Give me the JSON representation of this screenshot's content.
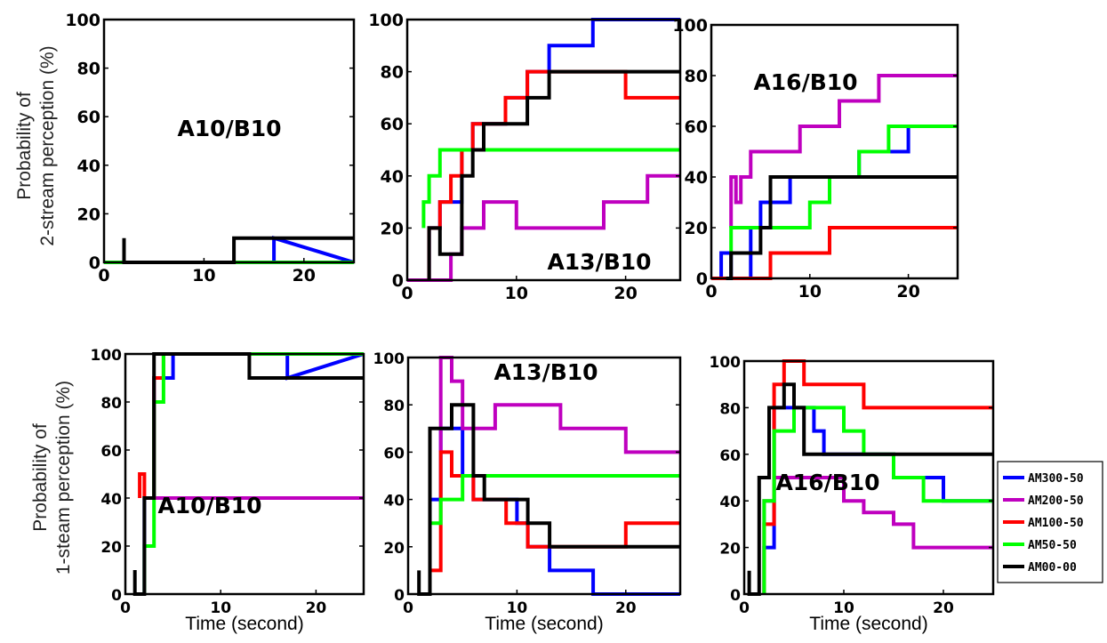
{
  "row_labels": {
    "top": [
      "Probability of",
      "2-stream perception (%)"
    ],
    "bottom": [
      "Probability of",
      "1-steam perception (%)"
    ]
  },
  "series_colors": {
    "AM300-50": "#0000ff",
    "AM200-50": "#bf00bf",
    "AM100-50": "#ff0000",
    "AM50-50": "#00ff00",
    "AM00-00": "#000000"
  },
  "chart_data": [
    {
      "type": "line",
      "annotation": "A10/B10",
      "xlabel": "",
      "ylabel": "Probability of 2-stream perception (%)",
      "xlim": [
        0,
        25
      ],
      "ylim": [
        0,
        100
      ],
      "xticks": [
        0,
        10,
        20
      ],
      "yticks": [
        0,
        20,
        40,
        60,
        80,
        100
      ],
      "grid": false,
      "legend": "none",
      "series": [
        {
          "name": "AM300-50",
          "x": [
            0,
            17,
            17,
            25
          ],
          "y": [
            0,
            0,
            10,
            0
          ]
        },
        {
          "name": "AM200-50",
          "x": [
            0,
            25
          ],
          "y": [
            0,
            0
          ]
        },
        {
          "name": "AM100-50",
          "x": [
            0,
            25
          ],
          "y": [
            0,
            0
          ]
        },
        {
          "name": "AM50-50",
          "x": [
            0,
            25
          ],
          "y": [
            0,
            0
          ]
        },
        {
          "name": "AM00-00",
          "x": [
            2,
            2,
            2,
            13,
            13,
            25
          ],
          "y": [
            0,
            10,
            0,
            0,
            10,
            10
          ]
        }
      ]
    },
    {
      "type": "line",
      "annotation": "A13/B10",
      "xlabel": "",
      "ylabel": "",
      "xlim": [
        0,
        25
      ],
      "ylim": [
        0,
        100
      ],
      "xticks": [
        0,
        10,
        20
      ],
      "yticks": [
        0,
        20,
        40,
        60,
        80,
        100
      ],
      "grid": false,
      "legend": "none",
      "series": [
        {
          "name": "AM300-50",
          "x": [
            2,
            2,
            3,
            3,
            5,
            5,
            6,
            6,
            9,
            9,
            11,
            11,
            13,
            13,
            17,
            17,
            25
          ],
          "y": [
            0,
            20,
            20,
            30,
            30,
            50,
            50,
            60,
            60,
            70,
            70,
            80,
            80,
            90,
            90,
            100,
            100
          ]
        },
        {
          "name": "AM200-50",
          "x": [
            0,
            4,
            4,
            5,
            5,
            7,
            7,
            10,
            10,
            18,
            18,
            22,
            22,
            25
          ],
          "y": [
            0,
            0,
            10,
            10,
            20,
            20,
            30,
            30,
            20,
            20,
            30,
            30,
            40,
            40
          ]
        },
        {
          "name": "AM100-50",
          "x": [
            2,
            2,
            3,
            3,
            4,
            4,
            5,
            5,
            6,
            6,
            9,
            9,
            11,
            11,
            20,
            20,
            25
          ],
          "y": [
            0,
            20,
            20,
            30,
            30,
            40,
            40,
            50,
            50,
            60,
            60,
            70,
            70,
            80,
            80,
            70,
            70
          ]
        },
        {
          "name": "AM50-50",
          "x": [
            1.5,
            1.5,
            2,
            2,
            3,
            3,
            25
          ],
          "y": [
            20,
            30,
            30,
            40,
            40,
            50,
            50
          ]
        },
        {
          "name": "AM00-00",
          "x": [
            2,
            2,
            3,
            3,
            5,
            5,
            6,
            6,
            7,
            7,
            10,
            10,
            11,
            11,
            13,
            13,
            25
          ],
          "y": [
            0,
            20,
            20,
            10,
            10,
            40,
            40,
            50,
            50,
            60,
            60,
            60,
            60,
            70,
            70,
            80,
            80
          ]
        }
      ]
    },
    {
      "type": "line",
      "annotation": "A16/B10",
      "xlabel": "",
      "ylabel": "",
      "xlim": [
        0,
        25
      ],
      "ylim": [
        0,
        100
      ],
      "xticks": [
        0,
        10,
        20
      ],
      "yticks": [
        0,
        20,
        40,
        60,
        80,
        100
      ],
      "grid": false,
      "legend": "none",
      "series": [
        {
          "name": "AM300-50",
          "x": [
            0,
            1,
            1,
            2,
            2,
            4,
            4,
            5,
            5,
            7,
            7,
            8,
            8,
            12,
            12,
            15,
            15,
            18,
            18,
            20,
            20,
            25
          ],
          "y": [
            0,
            0,
            10,
            10,
            0,
            0,
            20,
            20,
            30,
            30,
            30,
            30,
            40,
            40,
            40,
            40,
            50,
            50,
            50,
            50,
            60,
            60
          ]
        },
        {
          "name": "AM200-50",
          "x": [
            2,
            2,
            2.5,
            2.5,
            3,
            3,
            4,
            4,
            9,
            9,
            13,
            13,
            15,
            15,
            17,
            17,
            25
          ],
          "y": [
            20,
            40,
            40,
            30,
            30,
            40,
            40,
            50,
            50,
            60,
            60,
            70,
            70,
            70,
            70,
            80,
            80
          ]
        },
        {
          "name": "AM100-50",
          "x": [
            0,
            4,
            4,
            6,
            6,
            12,
            12,
            25
          ],
          "y": [
            0,
            0,
            0,
            0,
            10,
            10,
            20,
            20
          ]
        },
        {
          "name": "AM50-50",
          "x": [
            2,
            2,
            3,
            3,
            8,
            8,
            10,
            10,
            12,
            12,
            15,
            15,
            18,
            18,
            25
          ],
          "y": [
            10,
            20,
            20,
            20,
            20,
            20,
            20,
            30,
            30,
            40,
            40,
            50,
            50,
            60,
            60
          ]
        },
        {
          "name": "AM00-00",
          "x": [
            1.5,
            2,
            2,
            3,
            3,
            5,
            5,
            6,
            6,
            25
          ],
          "y": [
            0,
            0,
            10,
            10,
            10,
            10,
            20,
            20,
            40,
            40
          ]
        }
      ]
    },
    {
      "type": "line",
      "annotation": "A10/B10",
      "xlabel": "Time (second)",
      "ylabel": "Probability of 1-steam perception (%)",
      "xlim": [
        0,
        25
      ],
      "ylim": [
        0,
        100
      ],
      "xticks": [
        0,
        10,
        20
      ],
      "yticks": [
        0,
        20,
        40,
        60,
        80,
        100
      ],
      "grid": false,
      "legend": "none",
      "series": [
        {
          "name": "AM300-50",
          "x": [
            2,
            2,
            3,
            3,
            4,
            4,
            5,
            5,
            17,
            17,
            25
          ],
          "y": [
            0,
            40,
            40,
            90,
            90,
            90,
            90,
            100,
            100,
            90,
            100
          ]
        },
        {
          "name": "AM200-50",
          "x": [
            2,
            25
          ],
          "y": [
            40,
            40
          ]
        },
        {
          "name": "AM100-50",
          "x": [
            1.5,
            1.5,
            2,
            2,
            3,
            3,
            4,
            4,
            25
          ],
          "y": [
            40,
            50,
            50,
            40,
            40,
            90,
            90,
            100,
            100
          ]
        },
        {
          "name": "AM50-50",
          "x": [
            2,
            2,
            3,
            3,
            4,
            4,
            13,
            13,
            25
          ],
          "y": [
            0,
            20,
            20,
            80,
            80,
            100,
            100,
            100,
            100
          ]
        },
        {
          "name": "AM00-00",
          "x": [
            1,
            1,
            1,
            2,
            2,
            3,
            3,
            13,
            13,
            25
          ],
          "y": [
            0,
            10,
            0,
            0,
            40,
            40,
            100,
            100,
            90,
            90
          ]
        }
      ]
    },
    {
      "type": "line",
      "annotation": "A13/B10",
      "xlabel": "Time (second)",
      "ylabel": "",
      "xlim": [
        0,
        25
      ],
      "ylim": [
        0,
        100
      ],
      "xticks": [
        0,
        10,
        20
      ],
      "yticks": [
        0,
        20,
        40,
        60,
        80,
        100
      ],
      "grid": false,
      "legend": "none",
      "series": [
        {
          "name": "AM300-50",
          "x": [
            2,
            2,
            3,
            3,
            5,
            5,
            6,
            6,
            10,
            10,
            11,
            11,
            13,
            13,
            17,
            17,
            25
          ],
          "y": [
            0,
            40,
            40,
            70,
            70,
            50,
            50,
            40,
            40,
            30,
            30,
            20,
            20,
            10,
            10,
            0,
            0
          ]
        },
        {
          "name": "AM200-50",
          "x": [
            3,
            3,
            4,
            4,
            5,
            5,
            8,
            8,
            14,
            14,
            20,
            20,
            25
          ],
          "y": [
            60,
            100,
            100,
            90,
            90,
            70,
            70,
            80,
            80,
            70,
            70,
            60,
            60
          ]
        },
        {
          "name": "AM100-50",
          "x": [
            2,
            2,
            3,
            3,
            4,
            4,
            5,
            5,
            6,
            6,
            9,
            9,
            11,
            11,
            20,
            20,
            25
          ],
          "y": [
            0,
            10,
            10,
            60,
            60,
            50,
            50,
            50,
            50,
            40,
            40,
            30,
            30,
            20,
            20,
            30,
            30
          ]
        },
        {
          "name": "AM50-50",
          "x": [
            2,
            2,
            3,
            3,
            5,
            5,
            25
          ],
          "y": [
            30,
            30,
            30,
            40,
            40,
            50,
            50
          ]
        },
        {
          "name": "AM00-00",
          "x": [
            1,
            1,
            1,
            2,
            2,
            4,
            4,
            6,
            6,
            7,
            7,
            11,
            11,
            13,
            13,
            25
          ],
          "y": [
            0,
            10,
            0,
            0,
            70,
            70,
            80,
            80,
            50,
            50,
            40,
            40,
            30,
            30,
            20,
            20
          ]
        }
      ]
    },
    {
      "type": "line",
      "annotation": "A16/B10",
      "xlabel": "Time (second)",
      "ylabel": "",
      "xlim": [
        0,
        25
      ],
      "ylim": [
        0,
        100
      ],
      "xticks": [
        0,
        10,
        20
      ],
      "yticks": [
        0,
        20,
        40,
        60,
        80,
        100
      ],
      "grid": false,
      "legend": "right",
      "series": [
        {
          "name": "AM300-50",
          "x": [
            2,
            2,
            3,
            3,
            7,
            7,
            8,
            8,
            15,
            15,
            20,
            20,
            25
          ],
          "y": [
            0,
            20,
            20,
            80,
            80,
            70,
            70,
            60,
            60,
            50,
            50,
            40,
            40
          ]
        },
        {
          "name": "AM200-50",
          "x": [
            2,
            2,
            3,
            3,
            10,
            10,
            12,
            12,
            15,
            15,
            17,
            17,
            25
          ],
          "y": [
            0,
            40,
            40,
            50,
            50,
            40,
            40,
            35,
            35,
            30,
            30,
            20,
            20
          ]
        },
        {
          "name": "AM100-50",
          "x": [
            2,
            2,
            3,
            3,
            4,
            4,
            6,
            6,
            12,
            12,
            25
          ],
          "y": [
            0,
            30,
            30,
            90,
            90,
            100,
            100,
            90,
            90,
            80,
            80
          ]
        },
        {
          "name": "AM50-50",
          "x": [
            2,
            2,
            3,
            3,
            5,
            5,
            10,
            10,
            12,
            12,
            15,
            15,
            18,
            18,
            25
          ],
          "y": [
            0,
            40,
            40,
            70,
            70,
            80,
            80,
            70,
            70,
            60,
            60,
            50,
            50,
            40,
            40
          ]
        },
        {
          "name": "AM00-00",
          "x": [
            0.5,
            0.5,
            0.5,
            1.5,
            1.5,
            2.5,
            2.5,
            4,
            4,
            5,
            5,
            6,
            6,
            25
          ],
          "y": [
            0,
            10,
            0,
            0,
            50,
            50,
            80,
            80,
            90,
            90,
            80,
            80,
            60,
            60
          ]
        }
      ]
    }
  ]
}
